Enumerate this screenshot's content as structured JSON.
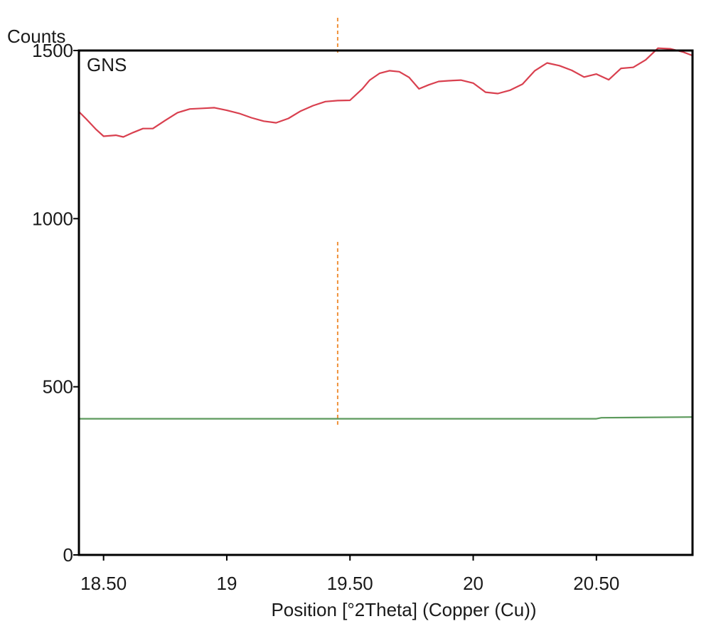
{
  "chart_data": {
    "type": "line",
    "panel_label": "GNS",
    "ylabel": "Counts",
    "xlabel": "Position [°2Theta] (Copper (Cu))",
    "xlim": [
      18.4,
      20.89
    ],
    "ylim": [
      0,
      1500
    ],
    "x_ticks": [
      18.5,
      19,
      19.5,
      20,
      20.5
    ],
    "x_tick_labels": [
      "18.50",
      "19",
      "19.50",
      "20",
      "20.50"
    ],
    "y_ticks": [
      0,
      500,
      1000,
      1500
    ],
    "y_tick_labels": [
      "0",
      "500",
      "1000",
      "1500"
    ],
    "grid": false,
    "reference_line": {
      "x": 19.45,
      "color": "#f0913a",
      "style": "dashed"
    },
    "series": [
      {
        "color": "#d9404f",
        "x": [
          18.4,
          18.43,
          18.47,
          18.5,
          18.55,
          18.58,
          18.62,
          18.66,
          18.7,
          18.75,
          18.8,
          18.85,
          18.9,
          18.95,
          19.0,
          19.05,
          19.1,
          19.15,
          19.2,
          19.25,
          19.3,
          19.35,
          19.4,
          19.45,
          19.5,
          19.55,
          19.58,
          19.62,
          19.66,
          19.7,
          19.74,
          19.78,
          19.82,
          19.86,
          19.9,
          19.95,
          20.0,
          20.05,
          20.1,
          20.15,
          20.2,
          20.25,
          20.3,
          20.35,
          20.4,
          20.45,
          20.5,
          20.55,
          20.6,
          20.65,
          20.7,
          20.75,
          20.8,
          20.85,
          20.89
        ],
        "y": [
          1318,
          1296,
          1265,
          1245,
          1248,
          1243,
          1256,
          1268,
          1268,
          1292,
          1315,
          1326,
          1328,
          1330,
          1322,
          1313,
          1300,
          1290,
          1285,
          1298,
          1320,
          1336,
          1348,
          1351,
          1352,
          1386,
          1412,
          1432,
          1440,
          1437,
          1420,
          1386,
          1398,
          1408,
          1410,
          1412,
          1403,
          1376,
          1372,
          1382,
          1400,
          1440,
          1463,
          1455,
          1441,
          1421,
          1430,
          1413,
          1447,
          1450,
          1472,
          1507,
          1505,
          1496,
          1485
        ]
      },
      {
        "color": "#5c9a5c",
        "x": [
          18.4,
          19.42,
          19.48,
          20.5,
          20.52,
          20.89
        ],
        "y": [
          405,
          405,
          405,
          405,
          408,
          410
        ]
      }
    ]
  }
}
